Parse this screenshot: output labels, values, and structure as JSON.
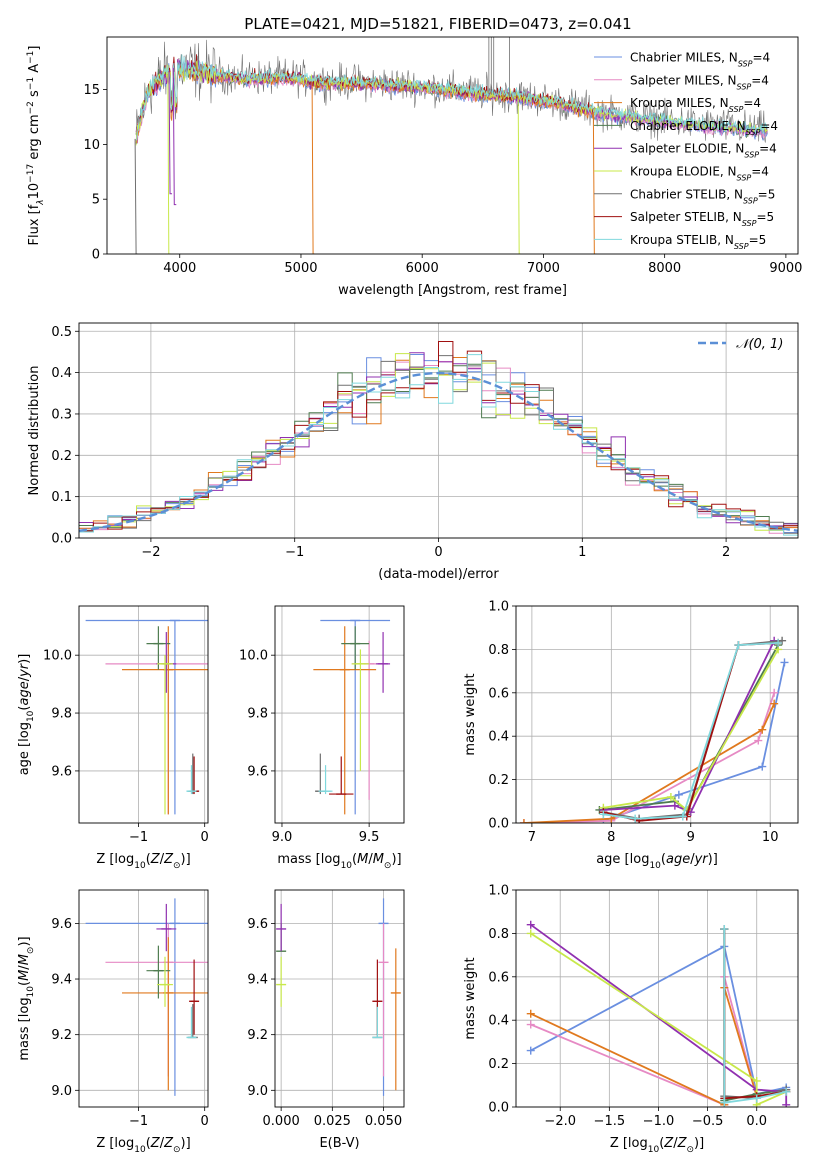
{
  "figure_title": "PLATE=0421, MJD=51821, FIBERID=0473, z=0.041",
  "colors": {
    "c0": "#6a8fe0",
    "c1": "#e68ac4",
    "c2": "#e0791e",
    "c3": "#4f7c50",
    "c4": "#9030b0",
    "c5": "#c8e84a",
    "c6": "#707070",
    "c7": "#a01010",
    "c8": "#80d8dd",
    "gauss": "#5b8fd6"
  },
  "legend_spectrum": [
    {
      "pre": "Chabrier MILES, N",
      "sub": "SSP",
      "post": "=4"
    },
    {
      "pre": "Salpeter MILES, N",
      "sub": "SSP",
      "post": "=4"
    },
    {
      "pre": "Kroupa MILES, N",
      "sub": "SSP",
      "post": "=4"
    },
    {
      "pre": "Chabrier ELODIE, N",
      "sub": "SSP",
      "post": "=4"
    },
    {
      "pre": "Salpeter ELODIE, N",
      "sub": "SSP",
      "post": "=4"
    },
    {
      "pre": "Kroupa ELODIE, N",
      "sub": "SSP",
      "post": "=4"
    },
    {
      "pre": "Chabrier STELIB, N",
      "sub": "SSP",
      "post": "=5"
    },
    {
      "pre": "Salpeter STELIB, N",
      "sub": "SSP",
      "post": "=5"
    },
    {
      "pre": "Kroupa STELIB, N",
      "sub": "SSP",
      "post": "=5"
    }
  ],
  "legend_hist": "𝒩(0, 1)",
  "chart_data": [
    {
      "id": "spectrum",
      "type": "line",
      "xlabel": "wavelength [Angstrom, rest frame]",
      "ylabel_parts": {
        "a": "Flux [f",
        "b": "λ",
        "c": "10",
        "d": "−17",
        "e": " erg cm",
        "f": "−2",
        "g": " s",
        "h": "−1",
        "i": " A",
        "j": "−1",
        "k": "]"
      },
      "xlim": [
        3400,
        9100
      ],
      "ylim": [
        0,
        19.8
      ],
      "xticks": [
        4000,
        5000,
        6000,
        7000,
        8000,
        9000
      ],
      "yticks": [
        0,
        5,
        10,
        15
      ],
      "continuum_x": [
        3640,
        3680,
        3750,
        3850,
        3950,
        4100,
        4300,
        4500,
        4700,
        4900,
        5100,
        5300,
        5600,
        6000,
        6400,
        6800,
        7100,
        7400,
        7700,
        8000,
        8300,
        8600,
        8850
      ],
      "continuum_y": [
        10.5,
        12.5,
        15.0,
        16.0,
        17.0,
        16.8,
        16.3,
        16.0,
        16.0,
        16.1,
        15.7,
        15.6,
        15.5,
        15.2,
        14.7,
        14.3,
        13.8,
        13.0,
        12.5,
        12.1,
        11.7,
        11.4,
        11.2
      ],
      "series_ranges": [
        [
          3640,
          8850
        ],
        [
          3640,
          8850
        ],
        [
          3640,
          7420
        ],
        [
          3640,
          8850
        ],
        [
          3640,
          8850
        ],
        [
          3640,
          8850
        ],
        [
          3640,
          8850
        ],
        [
          3640,
          7420
        ],
        [
          3640,
          8850
        ]
      ],
      "drops": [
        {
          "series": 2,
          "x": 5100,
          "y": 0
        },
        {
          "series": 5,
          "x": 3910,
          "y": 0
        },
        {
          "series": 5,
          "x": 6800,
          "y": 0
        },
        {
          "series": 6,
          "x": 3640,
          "y": 0
        },
        {
          "series": 4,
          "x": 3955,
          "y": 4.5
        },
        {
          "series": 4,
          "x": 3920,
          "y": 5.5
        },
        {
          "series": 2,
          "x": 7420,
          "y": 0
        }
      ]
    },
    {
      "id": "residuals",
      "type": "step",
      "xlabel": "(data-model)/error",
      "ylabel": "Normed distribution",
      "xlim": [
        -2.5,
        2.5
      ],
      "ylim": [
        0,
        0.52
      ],
      "xticks": [
        -2,
        -1,
        0,
        1,
        2
      ],
      "xticklabels": [
        "−2",
        "−1",
        "0",
        "1",
        "2"
      ],
      "yticks": [
        0.0,
        0.1,
        0.2,
        0.3,
        0.4,
        0.5
      ],
      "yticklabels": [
        "0.0",
        "0.1",
        "0.2",
        "0.3",
        "0.4",
        "0.5"
      ],
      "bin_width": 0.1,
      "gaussian": {
        "mean": 0,
        "sigma": 1
      }
    },
    {
      "id": "age_vs_Z",
      "type": "errorbar",
      "xlabel": "Z [log10(Z/Z⊙)]",
      "ylabel": "age  [log10(age/yr)]",
      "xlim": [
        -1.9,
        0.05
      ],
      "ylim": [
        9.42,
        10.17
      ],
      "xticks": [
        -1,
        0
      ],
      "xticklabels": [
        "−1",
        "0"
      ],
      "yticks": [
        9.6,
        9.8,
        10.0
      ],
      "yticklabels": [
        "9.6",
        "9.8",
        "10.0"
      ],
      "points": [
        {
          "x": -0.45,
          "y": 10.12,
          "xerr": 1.35,
          "ylo": 9.45,
          "yhi": 10.12,
          "c": "c0"
        },
        {
          "x": -0.55,
          "y": 9.97,
          "xerr": 0.95,
          "ylo": 9.45,
          "yhi": 10.08,
          "c": "c1"
        },
        {
          "x": -0.55,
          "y": 9.95,
          "xerr": 0.7,
          "ylo": 9.45,
          "yhi": 10.1,
          "c": "c2"
        },
        {
          "x": -0.7,
          "y": 10.04,
          "xerr": 0.18,
          "ylo": 9.95,
          "yhi": 10.1,
          "c": "c3"
        },
        {
          "x": -0.58,
          "y": 9.97,
          "xerr": 0.15,
          "ylo": 9.87,
          "yhi": 10.08,
          "c": "c4"
        },
        {
          "x": -0.6,
          "y": 9.97,
          "xerr": 0.12,
          "ylo": 9.45,
          "yhi": 10.0,
          "c": "c5"
        },
        {
          "x": -0.18,
          "y": 9.53,
          "xerr": 0.05,
          "ylo": 9.52,
          "yhi": 9.66,
          "c": "c6"
        },
        {
          "x": -0.16,
          "y": 9.53,
          "xerr": 0.05,
          "ylo": 9.52,
          "yhi": 9.65,
          "c": "c7"
        },
        {
          "x": -0.2,
          "y": 9.53,
          "xerr": 0.06,
          "ylo": 9.52,
          "yhi": 9.62,
          "c": "c8"
        }
      ]
    },
    {
      "id": "age_vs_mass",
      "type": "errorbar",
      "xlabel": "mass [log10(M/M⊙)]",
      "ylabel": "",
      "xlim": [
        8.96,
        9.7
      ],
      "ylim": [
        9.42,
        10.17
      ],
      "xticks": [
        9.0,
        9.5
      ],
      "xticklabels": [
        "9.0",
        "9.5"
      ],
      "yticks": [
        9.6,
        9.8,
        10.0
      ],
      "yticklabels": [
        "9.6",
        "9.8",
        "10.0"
      ],
      "points": [
        {
          "x": 9.42,
          "y": 10.12,
          "xerr": 0.2,
          "ylo": 9.45,
          "yhi": 10.12,
          "c": "c0"
        },
        {
          "x": 9.5,
          "y": 9.97,
          "xerr": 0.1,
          "ylo": 9.5,
          "yhi": 10.05,
          "c": "c1"
        },
        {
          "x": 9.36,
          "y": 9.95,
          "xerr": 0.18,
          "ylo": 9.45,
          "yhi": 10.1,
          "c": "c2"
        },
        {
          "x": 9.42,
          "y": 10.04,
          "xerr": 0.08,
          "ylo": 9.95,
          "yhi": 10.1,
          "c": "c3"
        },
        {
          "x": 9.58,
          "y": 9.97,
          "xerr": 0.04,
          "ylo": 9.87,
          "yhi": 10.08,
          "c": "c4"
        },
        {
          "x": 9.45,
          "y": 9.97,
          "xerr": 0.05,
          "ylo": 9.6,
          "yhi": 10.02,
          "c": "c5"
        },
        {
          "x": 9.22,
          "y": 9.53,
          "xerr": 0.03,
          "ylo": 9.52,
          "yhi": 9.66,
          "c": "c6"
        },
        {
          "x": 9.34,
          "y": 9.52,
          "xerr": 0.07,
          "ylo": 9.52,
          "yhi": 9.65,
          "c": "c7"
        },
        {
          "x": 9.25,
          "y": 9.53,
          "xerr": 0.04,
          "ylo": 9.52,
          "yhi": 9.62,
          "c": "c8"
        }
      ]
    },
    {
      "id": "weight_vs_age",
      "type": "line",
      "xlabel": "age  [log10(age/yr)]",
      "ylabel": "mass weight",
      "xlim": [
        6.8,
        10.35
      ],
      "ylim": [
        0,
        1.0
      ],
      "xticks": [
        7,
        8,
        9,
        10
      ],
      "xticklabels": [
        "7",
        "8",
        "9",
        "10"
      ],
      "yticks": [
        0.0,
        0.2,
        0.4,
        0.6,
        0.8,
        1.0
      ],
      "yticklabels": [
        "0.0",
        "0.2",
        "0.4",
        "0.6",
        "0.8",
        "1.0"
      ],
      "series": [
        {
          "c": "c0",
          "x": [
            7.9,
            8.85,
            9.9,
            10.18
          ],
          "y": [
            0.01,
            0.13,
            0.26,
            0.74
          ]
        },
        {
          "c": "c1",
          "x": [
            6.9,
            8.0,
            9.85,
            10.05
          ],
          "y": [
            0.0,
            0.01,
            0.38,
            0.6
          ]
        },
        {
          "c": "c2",
          "x": [
            6.9,
            8.0,
            9.9,
            10.05
          ],
          "y": [
            0.0,
            0.02,
            0.43,
            0.55
          ]
        },
        {
          "c": "c3",
          "x": [
            7.85,
            8.8,
            8.95,
            10.1
          ],
          "y": [
            0.06,
            0.1,
            0.06,
            0.82
          ]
        },
        {
          "c": "c4",
          "x": [
            7.9,
            8.8,
            9.0,
            10.05
          ],
          "y": [
            0.06,
            0.08,
            0.05,
            0.84
          ]
        },
        {
          "c": "c5",
          "x": [
            7.9,
            8.75,
            8.95,
            10.1
          ],
          "y": [
            0.07,
            0.12,
            0.06,
            0.8
          ]
        },
        {
          "c": "c6",
          "x": [
            7.9,
            8.35,
            8.95,
            9.6,
            10.15
          ],
          "y": [
            0.05,
            0.02,
            0.04,
            0.82,
            0.84
          ]
        },
        {
          "c": "c7",
          "x": [
            7.9,
            8.35,
            8.95,
            9.6,
            10.1
          ],
          "y": [
            0.05,
            0.01,
            0.03,
            0.82,
            0.83
          ]
        },
        {
          "c": "c8",
          "x": [
            7.9,
            8.3,
            8.9,
            9.6,
            10.1
          ],
          "y": [
            0.04,
            0.02,
            0.03,
            0.82,
            0.83
          ]
        }
      ]
    },
    {
      "id": "mass_vs_Z",
      "type": "errorbar",
      "xlabel": "Z [log10(Z/Z⊙)]",
      "ylabel": "mass [log10(M/M⊙)]",
      "xlim": [
        -1.9,
        0.05
      ],
      "ylim": [
        8.94,
        9.72
      ],
      "xticks": [
        -1,
        0
      ],
      "xticklabels": [
        "−1",
        "0"
      ],
      "yticks": [
        9.0,
        9.2,
        9.4,
        9.6
      ],
      "yticklabels": [
        "9.0",
        "9.2",
        "9.4",
        "9.6"
      ],
      "points": [
        {
          "x": -0.45,
          "y": 9.6,
          "xerr": 1.35,
          "ylo": 8.98,
          "yhi": 9.69,
          "c": "c0"
        },
        {
          "x": -0.55,
          "y": 9.46,
          "xerr": 0.95,
          "ylo": 9.05,
          "yhi": 9.6,
          "c": "c1"
        },
        {
          "x": -0.55,
          "y": 9.35,
          "xerr": 0.7,
          "ylo": 9.0,
          "yhi": 9.55,
          "c": "c2"
        },
        {
          "x": -0.7,
          "y": 9.43,
          "xerr": 0.18,
          "ylo": 9.33,
          "yhi": 9.52,
          "c": "c3"
        },
        {
          "x": -0.58,
          "y": 9.58,
          "xerr": 0.15,
          "ylo": 9.5,
          "yhi": 9.67,
          "c": "c4"
        },
        {
          "x": -0.6,
          "y": 9.38,
          "xerr": 0.12,
          "ylo": 9.3,
          "yhi": 9.48,
          "c": "c5"
        },
        {
          "x": -0.18,
          "y": 9.19,
          "xerr": 0.05,
          "ylo": 9.19,
          "yhi": 9.31,
          "c": "c6"
        },
        {
          "x": -0.16,
          "y": 9.32,
          "xerr": 0.05,
          "ylo": 9.2,
          "yhi": 9.47,
          "c": "c7"
        },
        {
          "x": -0.2,
          "y": 9.19,
          "xerr": 0.06,
          "ylo": 9.19,
          "yhi": 9.3,
          "c": "c8"
        }
      ]
    },
    {
      "id": "mass_vs_ebv",
      "type": "errorbar",
      "xlabel": "E(B-V)",
      "ylabel": "",
      "xlim": [
        -0.003,
        0.06
      ],
      "ylim": [
        8.94,
        9.72
      ],
      "xticks": [
        0.0,
        0.025,
        0.05
      ],
      "xticklabels": [
        "0.000",
        "0.025",
        "0.050"
      ],
      "yticks": [
        9.0,
        9.2,
        9.4,
        9.6
      ],
      "yticklabels": [
        "9.0",
        "9.2",
        "9.4",
        "9.6"
      ],
      "points": [
        {
          "x": 0.05,
          "y": 9.6,
          "xerr": 0,
          "ylo": 8.98,
          "yhi": 9.69,
          "c": "c0"
        },
        {
          "x": 0.05,
          "y": 9.46,
          "xerr": 0,
          "ylo": 9.05,
          "yhi": 9.6,
          "c": "c1"
        },
        {
          "x": 0.056,
          "y": 9.35,
          "xerr": 0,
          "ylo": 9.0,
          "yhi": 9.51,
          "c": "c2"
        },
        {
          "x": 0.0,
          "y": 9.5,
          "xerr": 0,
          "ylo": 9.5,
          "yhi": 9.6,
          "c": "c3"
        },
        {
          "x": 0.0,
          "y": 9.58,
          "xerr": 0,
          "ylo": 9.5,
          "yhi": 9.67,
          "c": "c4"
        },
        {
          "x": 0.0,
          "y": 9.38,
          "xerr": 0,
          "ylo": 9.3,
          "yhi": 9.48,
          "c": "c5"
        },
        {
          "x": 0.047,
          "y": 9.19,
          "xerr": 0,
          "ylo": 9.19,
          "yhi": 9.31,
          "c": "c6"
        },
        {
          "x": 0.047,
          "y": 9.32,
          "xerr": 0,
          "ylo": 9.2,
          "yhi": 9.47,
          "c": "c7"
        },
        {
          "x": 0.047,
          "y": 9.19,
          "xerr": 0,
          "ylo": 9.19,
          "yhi": 9.3,
          "c": "c8"
        }
      ]
    },
    {
      "id": "weight_vs_Z",
      "type": "line",
      "xlabel": "Z [log10(Z/Z⊙)]",
      "ylabel": "mass weight",
      "xlim": [
        -2.45,
        0.42
      ],
      "ylim": [
        0,
        1.0
      ],
      "xticks": [
        -2.0,
        -1.5,
        -1.0,
        -0.5,
        0.0,
        0.5
      ],
      "xticklabels": [
        "−2.0",
        "−1.5",
        "−1.0",
        "−0.5",
        "0.0"
      ],
      "yticks": [
        0.0,
        0.2,
        0.4,
        0.6,
        0.8,
        1.0
      ],
      "yticklabels": [
        "0.0",
        "0.2",
        "0.4",
        "0.6",
        "0.8",
        "1.0"
      ],
      "series": [
        {
          "c": "c0",
          "x": [
            -2.3,
            -0.33,
            0.0,
            0.3
          ],
          "y": [
            0.26,
            0.74,
            0.06,
            0.09
          ]
        },
        {
          "c": "c1",
          "x": [
            -2.3,
            -0.33,
            -0.33,
            0.0
          ],
          "y": [
            0.38,
            0.01,
            0.6,
            0.05
          ]
        },
        {
          "c": "c2",
          "x": [
            -2.3,
            -0.33,
            -0.33,
            0.0
          ],
          "y": [
            0.43,
            0.01,
            0.55,
            0.05
          ]
        },
        {
          "c": "c3",
          "x": [
            -0.33,
            -0.33,
            0.0,
            0.3
          ],
          "y": [
            0.82,
            0.03,
            0.06,
            0.08
          ]
        },
        {
          "c": "c4",
          "x": [
            -2.3,
            0.0,
            0.3,
            0.3
          ],
          "y": [
            0.84,
            0.08,
            0.07,
            0.01
          ]
        },
        {
          "c": "c5",
          "x": [
            -2.3,
            0.0,
            0.0,
            0.3
          ],
          "y": [
            0.8,
            0.12,
            0.01,
            0.07
          ]
        },
        {
          "c": "c6",
          "x": [
            -0.33,
            -0.33,
            0.0,
            0.3
          ],
          "y": [
            0.82,
            0.05,
            0.04,
            0.08
          ]
        },
        {
          "c": "c7",
          "x": [
            -0.33,
            -0.33,
            0.0,
            0.3
          ],
          "y": [
            0.82,
            0.04,
            0.05,
            0.07
          ]
        },
        {
          "c": "c8",
          "x": [
            -0.33,
            -0.33,
            0.0,
            0.3
          ],
          "y": [
            0.82,
            0.02,
            0.04,
            0.07
          ]
        }
      ]
    }
  ]
}
